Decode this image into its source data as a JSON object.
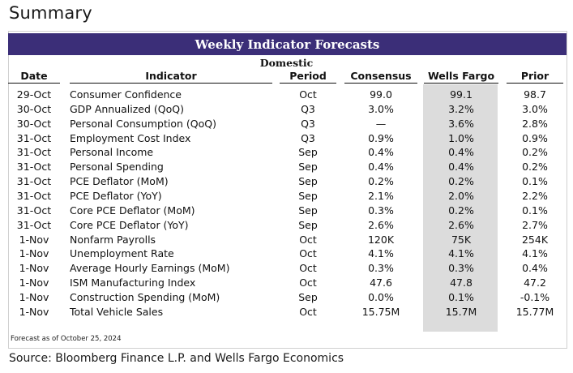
{
  "page": {
    "title": "Summary",
    "source": "Source: Bloomberg Finance L.P. and Wells Fargo Economics"
  },
  "table": {
    "banner": "Weekly Indicator Forecasts",
    "section": "Domestic",
    "banner_color": "#3b2e78",
    "highlight_column_color": "#dcdcdc",
    "headers": {
      "date": "Date",
      "indicator": "Indicator",
      "period": "Period",
      "consensus": "Consensus",
      "wells_fargo": "Wells Fargo",
      "prior": "Prior"
    },
    "rows": [
      {
        "date": "29-Oct",
        "indicator": "Consumer Confidence",
        "period": "Oct",
        "consensus": "99.0",
        "wells_fargo": "99.1",
        "prior": "98.7"
      },
      {
        "date": "30-Oct",
        "indicator": "GDP Annualized (QoQ)",
        "period": "Q3",
        "consensus": "3.0%",
        "wells_fargo": "3.2%",
        "prior": "3.0%"
      },
      {
        "date": "30-Oct",
        "indicator": "Personal Consumption (QoQ)",
        "period": "Q3",
        "consensus": "—",
        "wells_fargo": "3.6%",
        "prior": "2.8%"
      },
      {
        "date": "31-Oct",
        "indicator": "Employment Cost Index",
        "period": "Q3",
        "consensus": "0.9%",
        "wells_fargo": "1.0%",
        "prior": "0.9%"
      },
      {
        "date": "31-Oct",
        "indicator": "Personal Income",
        "period": "Sep",
        "consensus": "0.4%",
        "wells_fargo": "0.4%",
        "prior": "0.2%"
      },
      {
        "date": "31-Oct",
        "indicator": "Personal Spending",
        "period": "Sep",
        "consensus": "0.4%",
        "wells_fargo": "0.4%",
        "prior": "0.2%"
      },
      {
        "date": "31-Oct",
        "indicator": "PCE Deflator (MoM)",
        "period": "Sep",
        "consensus": "0.2%",
        "wells_fargo": "0.2%",
        "prior": "0.1%"
      },
      {
        "date": "31-Oct",
        "indicator": "PCE Deflator (YoY)",
        "period": "Sep",
        "consensus": "2.1%",
        "wells_fargo": "2.0%",
        "prior": "2.2%"
      },
      {
        "date": "31-Oct",
        "indicator": "Core PCE Deflator (MoM)",
        "period": "Sep",
        "consensus": "0.3%",
        "wells_fargo": "0.2%",
        "prior": "0.1%"
      },
      {
        "date": "31-Oct",
        "indicator": "Core PCE Deflator (YoY)",
        "period": "Sep",
        "consensus": "2.6%",
        "wells_fargo": "2.6%",
        "prior": "2.7%"
      },
      {
        "date": "1-Nov",
        "indicator": "Nonfarm Payrolls",
        "period": "Oct",
        "consensus": "120K",
        "wells_fargo": "75K",
        "prior": "254K"
      },
      {
        "date": "1-Nov",
        "indicator": "Unemployment Rate",
        "period": "Oct",
        "consensus": "4.1%",
        "wells_fargo": "4.1%",
        "prior": "4.1%"
      },
      {
        "date": "1-Nov",
        "indicator": "Average Hourly Earnings (MoM)",
        "period": "Oct",
        "consensus": "0.3%",
        "wells_fargo": "0.3%",
        "prior": "0.4%"
      },
      {
        "date": "1-Nov",
        "indicator": "ISM Manufacturing Index",
        "period": "Oct",
        "consensus": "47.6",
        "wells_fargo": "47.8",
        "prior": "47.2"
      },
      {
        "date": "1-Nov",
        "indicator": "Construction Spending (MoM)",
        "period": "Sep",
        "consensus": "0.0%",
        "wells_fargo": "0.1%",
        "prior": "-0.1%"
      },
      {
        "date": "1-Nov",
        "indicator": "Total Vehicle Sales",
        "period": "Oct",
        "consensus": "15.75M",
        "wells_fargo": "15.7M",
        "prior": "15.77M"
      }
    ],
    "footnote": "Forecast as of October 25, 2024"
  }
}
